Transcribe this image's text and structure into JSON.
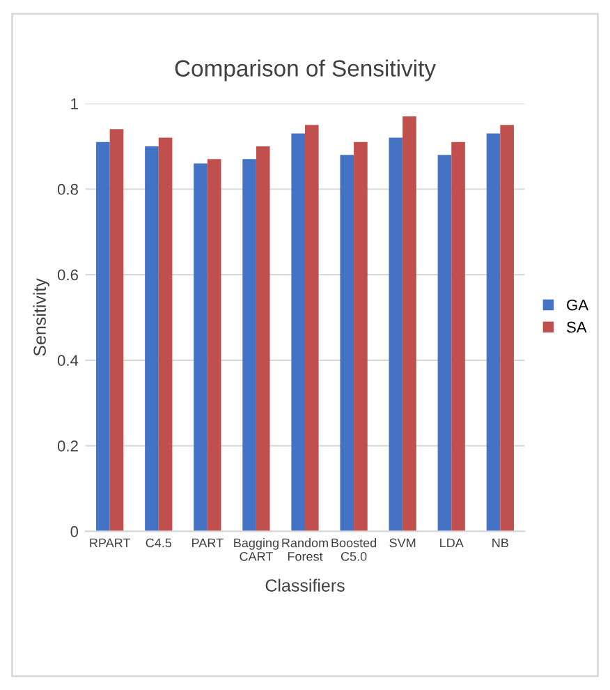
{
  "chart_data": {
    "type": "bar",
    "title": "Comparison of Sensitivity",
    "xlabel": "Classifiers",
    "ylabel": "Sensitivity",
    "categories": [
      "RPART",
      "C4.5",
      "PART",
      "Bagging\nCART",
      "Random\nForest",
      "Boosted\nC5.0",
      "SVM",
      "LDA",
      "NB"
    ],
    "series": [
      {
        "name": "GA",
        "color": "#4472c4",
        "values": [
          0.91,
          0.9,
          0.86,
          0.87,
          0.93,
          0.88,
          0.92,
          0.88,
          0.93
        ]
      },
      {
        "name": "SA",
        "color": "#c0504d",
        "values": [
          0.94,
          0.92,
          0.87,
          0.9,
          0.95,
          0.91,
          0.97,
          0.91,
          0.95
        ]
      }
    ],
    "ylim": [
      0,
      1
    ],
    "yticks": [
      0,
      0.2,
      0.4,
      0.6,
      0.8,
      1
    ],
    "grid": "y",
    "legend": "right"
  }
}
